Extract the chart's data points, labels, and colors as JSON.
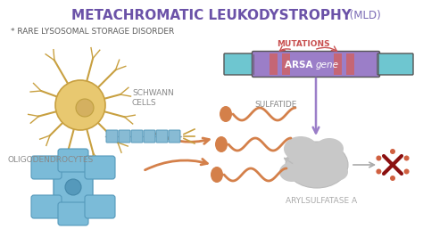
{
  "title": "METACHROMATIC LEUKODYSTROPHY",
  "title_suffix": " (MLD)",
  "subtitle": "* RARE LYSOSOMAL STORAGE DISORDER",
  "title_color": "#6B52A8",
  "title_suffix_color": "#7B6BB5",
  "subtitle_color": "#5A5A5A",
  "bg_color": "#FFFFFF",
  "gene_label": "ARSA gene",
  "gene_box_color": "#9B7EC8",
  "gene_flanks_color": "#6EC6D0",
  "gene_stripe_color": "#D06060",
  "mutations_label": "MUTATIONS",
  "mutations_color": "#C85050",
  "schwann_label": "SCHWANN\nCELLS",
  "schwann_color": "#888888",
  "oligodendro_label": "OLIGODENDROCYTES",
  "oligodendro_color": "#888888",
  "sulfatide_label": "SULFATIDE",
  "sulfatide_color": "#888888",
  "arylsulfatase_label": "ARYLSULFATASE A",
  "arylsulfatase_color": "#AAAAAA",
  "orange_color": "#D4804A",
  "purple_arrow_color": "#9B7EC8",
  "neuron_soma_color": "#E8C870",
  "neuron_soma_edge": "#C8A040",
  "neuron_axon_color": "#88BBD4",
  "neuron_axon_edge": "#5599BB",
  "oligo_color": "#7BBBD8",
  "oligo_edge": "#5599BB",
  "blob_color": "#C8C8C8",
  "blob_edge": "#AAAAAA"
}
